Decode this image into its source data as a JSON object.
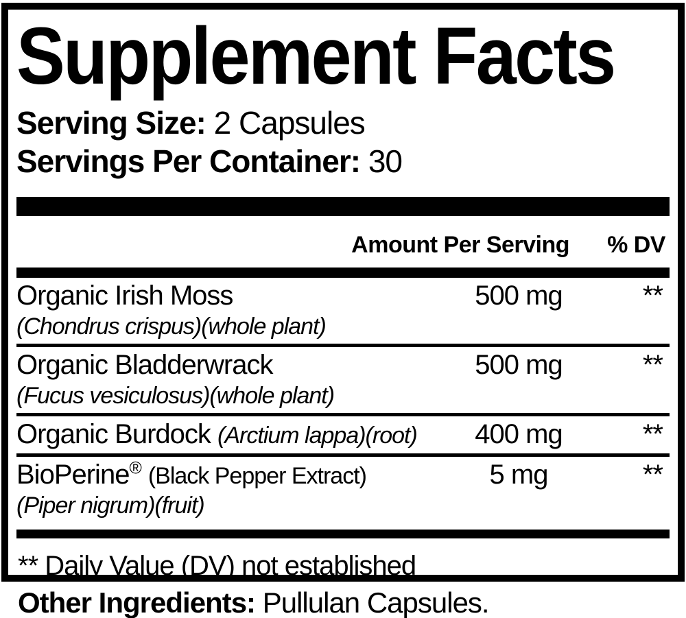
{
  "panel": {
    "title": "Supplement Facts",
    "serving_size": {
      "label": "Serving Size:",
      "value": "2 Capsules"
    },
    "servings_per_container": {
      "label": "Servings Per Container:",
      "value": "30"
    },
    "header": {
      "amount": "Amount Per Serving",
      "dv": "% DV"
    },
    "rows": [
      {
        "name": "Organic Irish Moss",
        "sub": "(Chondrus crispus)(whole plant)",
        "amount": "500 mg",
        "dv": "**"
      },
      {
        "name": "Organic Bladderwrack",
        "sub": "(Fucus vesiculosus)(whole plant)",
        "amount": "500 mg",
        "dv": "**"
      },
      {
        "name": "Organic Burdock",
        "name_note": "(Arctium lappa)(root)",
        "amount": "400 mg",
        "dv": "**"
      },
      {
        "name": "BioPerine",
        "trademark": "®",
        "name_note": "(Black Pepper Extract)",
        "sub": "(Piper nigrum)(fruit)",
        "amount": "5 mg",
        "dv": "**"
      }
    ],
    "footnote": "** Daily Value (DV) not established",
    "other_ingredients": {
      "label": "Other Ingredients:",
      "value": "Pullulan Capsules."
    }
  },
  "colors": {
    "ink": "#000000",
    "background": "#ffffff"
  }
}
